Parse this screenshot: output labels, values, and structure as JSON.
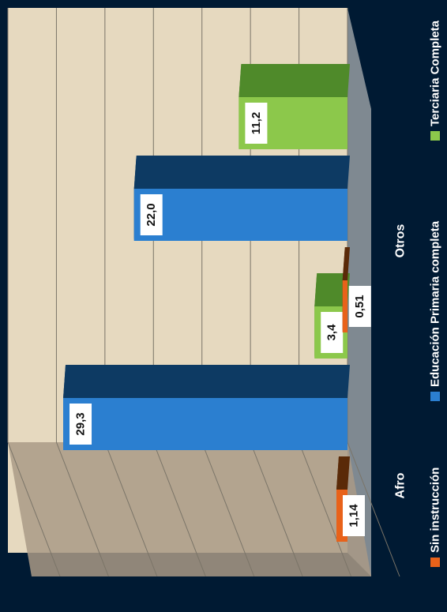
{
  "colors": {
    "background": "#001a33",
    "plot_back": "#e6d9bf",
    "plot_floor": "#a99a86",
    "side_wall": "#7f8991",
    "grid": "#7a7468",
    "series": [
      "#e8621a",
      "#2b7fd0",
      "#8cc84b"
    ],
    "series_top": [
      "#5a2a08",
      "#0d3a63",
      "#4f8a2a"
    ],
    "label_box": "#ffffff",
    "label_text": "#111111",
    "axis_text": "#ffffff"
  },
  "chart_data": {
    "type": "bar",
    "orientation": "rotated-90-clockwise",
    "three_d": true,
    "categories": [
      "Afro",
      "Otros"
    ],
    "series": [
      {
        "name": "Sin instrucción",
        "values": [
          1.14,
          0.51
        ],
        "labels": [
          "1,14",
          "0,51"
        ]
      },
      {
        "name": "Educación Primaria completa",
        "values": [
          29.3,
          22.0
        ],
        "labels": [
          "29,3",
          "22,0"
        ]
      },
      {
        "name": "Terciaria Completa",
        "values": [
          3.4,
          11.2
        ],
        "labels": [
          "3,4",
          "11,2"
        ]
      }
    ],
    "ylim": [
      0,
      35
    ],
    "grid": true,
    "legend_position": "bottom"
  }
}
